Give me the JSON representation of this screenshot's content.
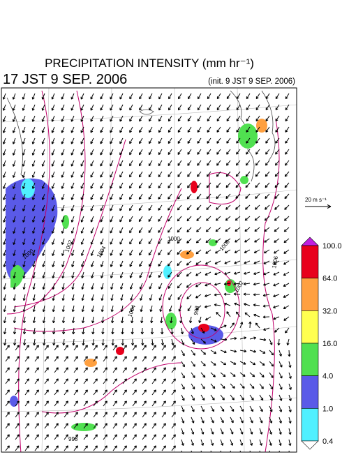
{
  "header": {
    "title": "PRECIPITATION INTENSITY (mm hr⁻¹)",
    "valid_time": "17 JST 9 SEP. 2006",
    "init_time": "(init. 9 JST 9 SEP. 2006)"
  },
  "vector_legend": {
    "label": "20 m s⁻¹"
  },
  "colorbar": {
    "labels": [
      "100.0",
      "64.0",
      "32.0",
      "16.0",
      "4.0",
      "1.0",
      "0.4"
    ],
    "over_color": "#c020e0",
    "colors": [
      "#e8001c",
      "#ffa040",
      "#ffff50",
      "#50e050",
      "#5a5ae8",
      "#50f0ff"
    ],
    "under_color": "#ffffff"
  },
  "contour_labels": [
    "1000",
    "1002",
    "1000",
    "1004",
    "1000",
    "998",
    "1002",
    "1004",
    "998",
    "1006"
  ]
}
